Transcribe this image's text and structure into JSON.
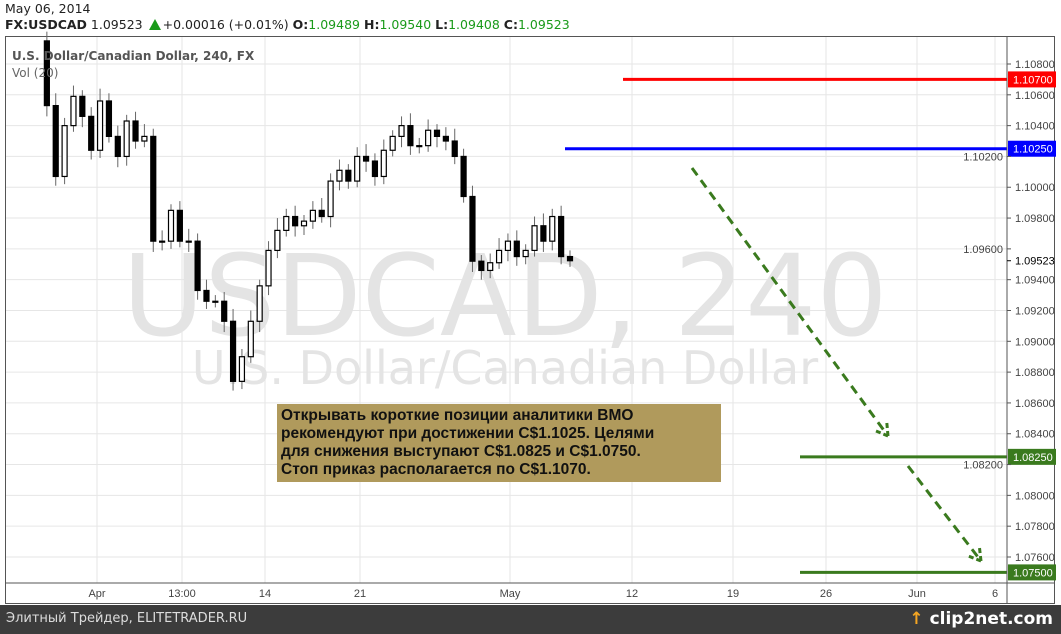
{
  "header": {
    "date": "May 06, 2014",
    "symbol": "FX:USDCAD",
    "last": "1.09523",
    "change": "+0.00016 (+0.01%)",
    "o_label": "O:",
    "o": "1.09489",
    "h_label": "H:",
    "h": "1.09540",
    "l_label": "L:",
    "l": "1.09408",
    "c_label": "C:",
    "c": "1.09523",
    "arrow_icon": "triangle-up-icon"
  },
  "legend": {
    "title": "U.S. Dollar/Canadian Dollar, 240, FX",
    "volume": "Vol (20)"
  },
  "watermark": {
    "line1": "USDCAD, 240",
    "line2": "U.S. Dollar/Canadian Dollar"
  },
  "note": {
    "lines": [
      "Открывать короткие позиции аналитики BMO",
      "рекомендуют при достижении C$1.1025. Целями",
      "для снижения выступают C$1.0825 и C$1.0750.",
      "Стоп приказ располагается по C$1.1070."
    ],
    "background": "#b09a5c"
  },
  "footer": {
    "text": "Элитный Трейдер, ELITETRADER.RU",
    "logo": "clip2net.com"
  },
  "chart_data": {
    "type": "candlestick",
    "ylim": [
      1.075,
      1.109
    ],
    "y_ticks": [
      "1.10800",
      "1.10600",
      "1.10400",
      "1.10200",
      "1.10000",
      "1.09800",
      "1.09600",
      "1.09400",
      "1.09200",
      "1.09000",
      "1.08800",
      "1.08600",
      "1.08400",
      "1.08200",
      "1.08000",
      "1.07800",
      "1.07600"
    ],
    "x_ticks": [
      "Apr",
      "13:00",
      "14",
      "21",
      "May",
      "12",
      "19",
      "26",
      "Jun",
      "6"
    ],
    "current_price": "1.09523",
    "closes": [
      1.1095,
      1.1053,
      1.1007,
      1.104,
      1.1059,
      1.1046,
      1.1024,
      1.1056,
      1.1033,
      1.102,
      1.1043,
      1.103,
      1.1033,
      1.0965,
      1.0965,
      1.0985,
      1.0965,
      1.0965,
      1.0933,
      1.0926,
      1.0926,
      1.0913,
      1.0874,
      1.089,
      1.0913,
      1.0936,
      1.0959,
      1.0972,
      1.0981,
      1.0975,
      1.0978,
      1.0985,
      1.0981,
      1.1004,
      1.1011,
      1.1004,
      1.102,
      1.1017,
      1.1007,
      1.1024,
      1.1033,
      1.104,
      1.1027,
      1.1027,
      1.1037,
      1.1033,
      1.103,
      1.102,
      1.0994,
      1.0952,
      1.0946,
      1.0951,
      1.0959,
      1.0965,
      1.0955,
      1.0959,
      1.0975,
      1.0965,
      1.0981,
      1.0955,
      1.09523
    ],
    "levels": [
      {
        "label": "1.10700",
        "price": 1.107,
        "color": "#ff0000",
        "role": "stop"
      },
      {
        "label": "1.10250",
        "price": 1.1025,
        "color": "#0000ff",
        "role": "entry"
      },
      {
        "label": "1.08250",
        "price": 1.0825,
        "color": "#3a7a1e",
        "role": "target"
      },
      {
        "label": "1.07500",
        "price": 1.075,
        "color": "#3a7a1e",
        "role": "target"
      }
    ],
    "arrows_color": "#3a7a1e"
  }
}
